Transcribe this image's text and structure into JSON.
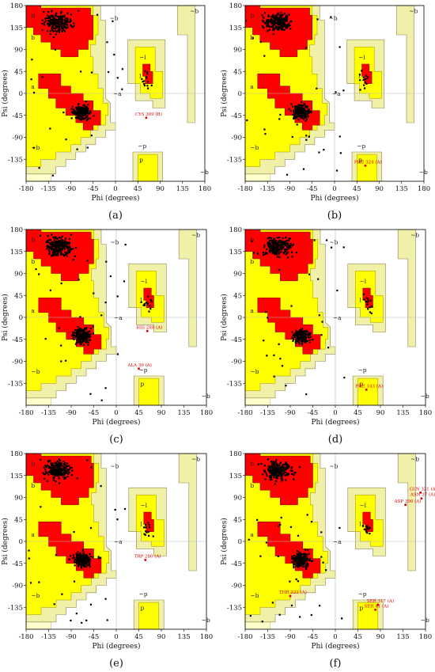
{
  "colors": {
    "core": "#ff0000",
    "allowed": "#ffff00",
    "generous": "#f0f0a8",
    "generous_light": "#ffffcc",
    "point": "#000000",
    "outlier": "#e00000",
    "background": "#ffffff"
  },
  "chart_data": [
    {
      "id": "a",
      "type": "scatter",
      "caption": "(a)",
      "xlabel": "Phi (degrees)",
      "ylabel": "Psi (degrees)",
      "xlim": [
        -180,
        180
      ],
      "ylim": [
        -180,
        180
      ],
      "x_ticks": [
        -180,
        -135,
        -90,
        -45,
        0,
        45,
        90,
        135,
        180
      ],
      "y_ticks": [
        180,
        135,
        90,
        45,
        0,
        -45,
        -90,
        -135
      ],
      "region_labels": [
        "b",
        "~b",
        "b",
        "a",
        "~a",
        "~l",
        "l",
        "~p",
        "p",
        "~b",
        "~b",
        "~b"
      ],
      "outliers": [
        {
          "label": "CYS 309 (B)",
          "phi": 62,
          "psi": -50
        }
      ]
    },
    {
      "id": "b",
      "type": "scatter",
      "caption": "(b)",
      "xlabel": "Phi (degrees)",
      "ylabel": "Psi (degrees)",
      "xlim": [
        -180,
        180
      ],
      "ylim": [
        -180,
        180
      ],
      "x_ticks": [
        -180,
        -135,
        -90,
        -45,
        0,
        45,
        90,
        135,
        180
      ],
      "y_ticks": [
        180,
        135,
        90,
        45,
        0,
        -45,
        -90,
        -135
      ],
      "region_labels": [
        "b",
        "~b",
        "b",
        "a",
        "~a",
        "~l",
        "l",
        "~p",
        "p",
        "~b",
        "~b",
        "~b"
      ],
      "outliers": [
        {
          "label": "PHE 324 (A)",
          "phi": 62,
          "psi": -148
        }
      ]
    },
    {
      "id": "c",
      "type": "scatter",
      "caption": "(c)",
      "xlabel": "Phi (degrees)",
      "ylabel": "Psi (degrees)",
      "xlim": [
        -180,
        180
      ],
      "ylim": [
        -180,
        180
      ],
      "x_ticks": [
        -180,
        -135,
        -90,
        -45,
        0,
        45,
        90,
        135,
        180
      ],
      "y_ticks": [
        180,
        135,
        90,
        45,
        0,
        -45,
        -90,
        -135
      ],
      "region_labels": [
        "b",
        "~b",
        "b",
        "a",
        "~a",
        "~l",
        "l",
        "~p",
        "p",
        "~b",
        "~b",
        "~b"
      ],
      "outliers": [
        {
          "label": "HIS 288 (A)",
          "phi": 62,
          "psi": -28
        },
        {
          "label": "ALA 39 (A)",
          "phi": 45,
          "psi": -105
        }
      ]
    },
    {
      "id": "d",
      "type": "scatter",
      "caption": "(d)",
      "xlabel": "Phi (degrees)",
      "ylabel": "Psi (degrees)",
      "xlim": [
        -180,
        180
      ],
      "ylim": [
        -180,
        180
      ],
      "x_ticks": [
        -180,
        -135,
        -90,
        -45,
        0,
        45,
        90,
        135,
        180
      ],
      "y_ticks": [
        180,
        135,
        90,
        45,
        0,
        -45,
        -90,
        -135
      ],
      "region_labels": [
        "b",
        "~b",
        "b",
        "a",
        "~a",
        "~l",
        "l",
        "~p",
        "p",
        "~b",
        "~b",
        "~b"
      ],
      "outliers": [
        {
          "label": "PHE 143 (A)",
          "phi": 62,
          "psi": -148
        }
      ]
    },
    {
      "id": "e",
      "type": "scatter",
      "caption": "(e)",
      "xlabel": "Phi (degrees)",
      "ylabel": "Psi (degrees)",
      "xlim": [
        -180,
        180
      ],
      "ylim": [
        -180,
        180
      ],
      "x_ticks": [
        -180,
        -135,
        -90,
        -45,
        0,
        45,
        90,
        135,
        180
      ],
      "y_ticks": [
        180,
        135,
        90,
        45,
        0,
        -45,
        -90,
        -135
      ],
      "region_labels": [
        "b",
        "~b",
        "b",
        "a",
        "~a",
        "~l",
        "l",
        "~p",
        "p",
        "~b",
        "~b",
        "~b"
      ],
      "outliers": [
        {
          "label": "TRP 280 (A)",
          "phi": 58,
          "psi": -38
        }
      ]
    },
    {
      "id": "f",
      "type": "scatter",
      "caption": "(f)",
      "xlabel": "Phi (degrees)",
      "ylabel": "Psi (degrees)",
      "xlim": [
        -180,
        180
      ],
      "ylim": [
        -180,
        180
      ],
      "x_ticks": [
        -180,
        -135,
        -90,
        -45,
        0,
        45,
        90,
        135,
        180
      ],
      "y_ticks": [
        180,
        135,
        90,
        45,
        0,
        -45,
        -90,
        -135
      ],
      "region_labels": [
        "b",
        "~b",
        "b",
        "a",
        "~a",
        "~l",
        "l",
        "~p",
        "p",
        "~b",
        "~b",
        "~b"
      ],
      "outliers": [
        {
          "label": "GLN 321 (A)",
          "phi": 170,
          "psi": 100
        },
        {
          "label": "ASN 37 (A)",
          "phi": 172,
          "psi": 88
        },
        {
          "label": "ASP 300 (A)",
          "phi": 140,
          "psi": 75
        },
        {
          "label": "THR 222 (A)",
          "phi": -90,
          "psi": -112
        },
        {
          "label": "SER 317 (A)",
          "phi": 85,
          "psi": -130
        },
        {
          "label": "SER 41 (A)",
          "phi": 80,
          "psi": -140
        }
      ]
    }
  ]
}
